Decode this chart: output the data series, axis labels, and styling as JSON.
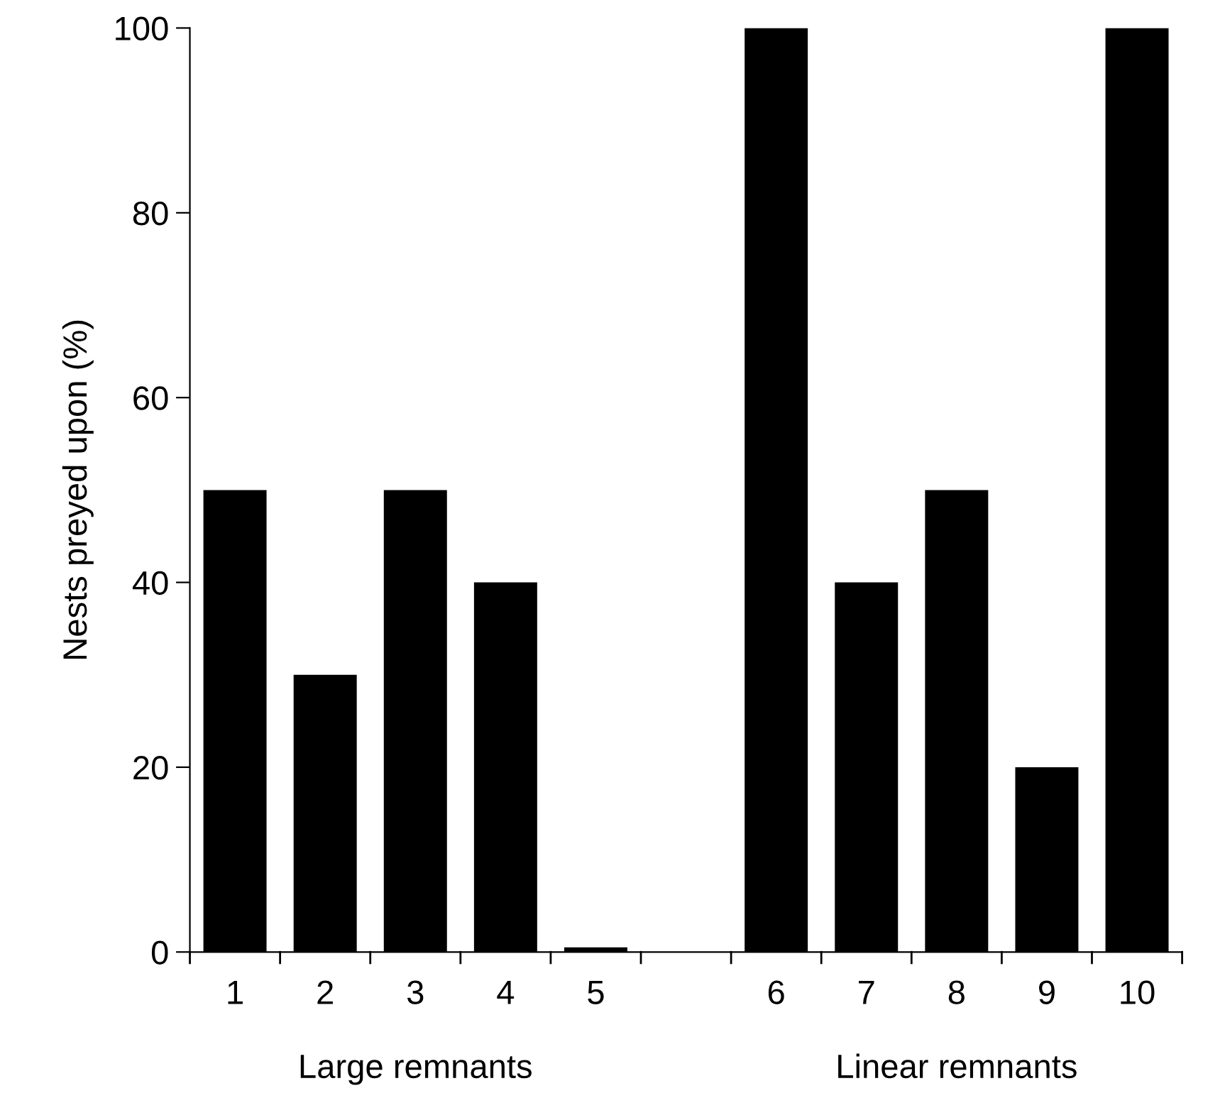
{
  "chart_data": {
    "type": "bar",
    "ylabel": "Nests preyed upon (%)",
    "categories": [
      "1",
      "2",
      "3",
      "4",
      "5",
      null,
      "6",
      "7",
      "8",
      "9",
      "10"
    ],
    "values": [
      50,
      30,
      50,
      40,
      0.5,
      null,
      100,
      40,
      50,
      20,
      100
    ],
    "color": "#000000",
    "ylim": [
      0,
      100
    ],
    "yticks": [
      0,
      20,
      40,
      60,
      80,
      100
    ],
    "grid": false,
    "legend": false,
    "annotations": [
      "Large remnants",
      "Linear remnants"
    ]
  }
}
